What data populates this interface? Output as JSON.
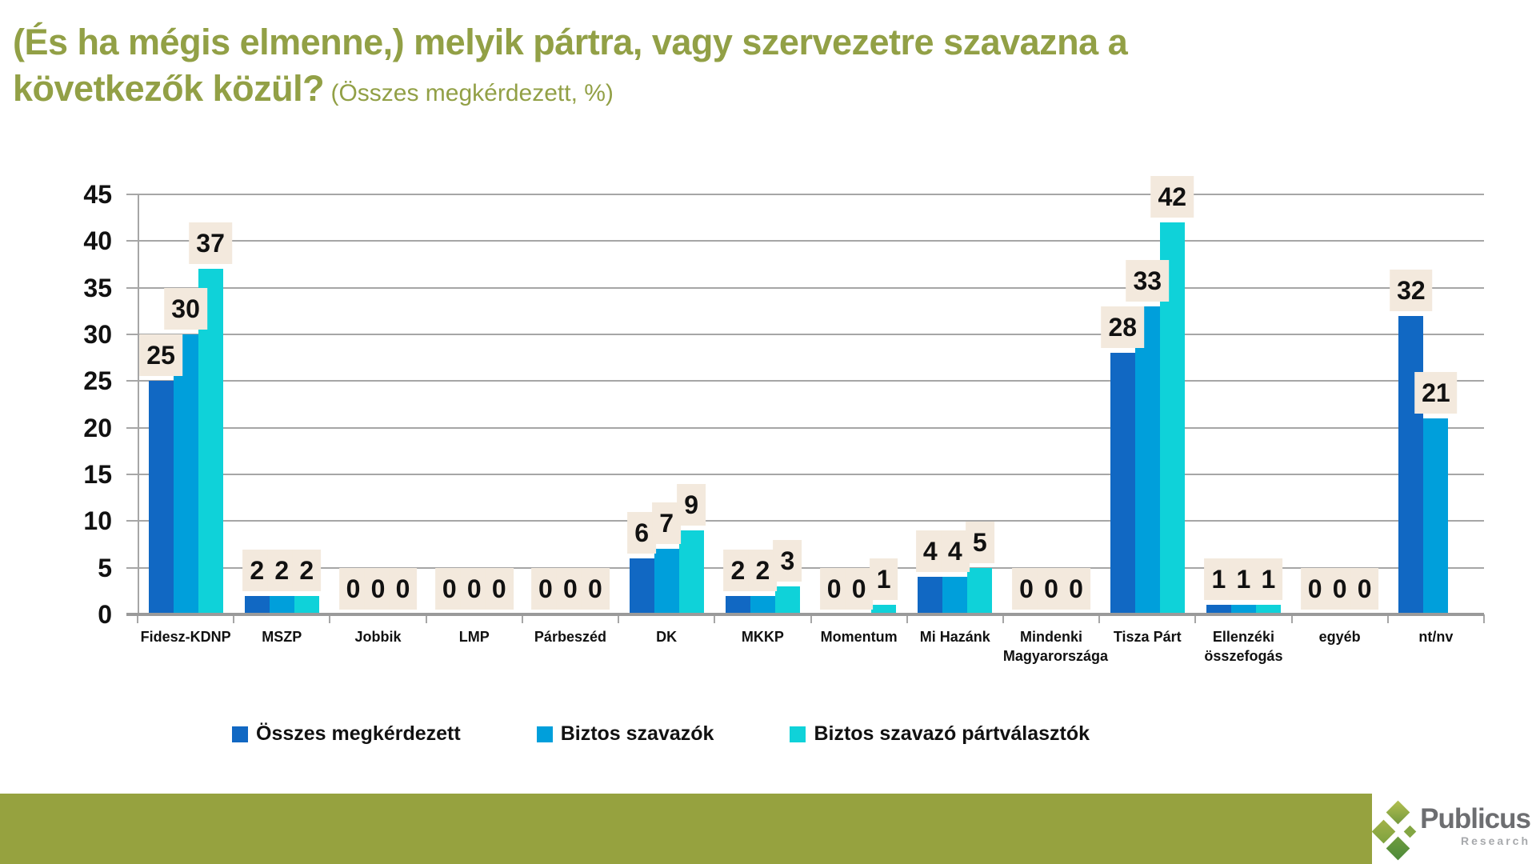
{
  "title": {
    "line1": "(És ha mégis elmenne,) melyik pártra, vagy szervezetre szavazna a",
    "line2_bold": "következők közül?",
    "line2_sub": " (Összes megkérdezett, %)"
  },
  "chart_data": {
    "type": "bar",
    "title": "(És ha mégis elmenne,) melyik pártra, vagy szervezetre szavazna a következők közül? (Összes megkérdezett, %)",
    "categories": [
      "Fidesz-KDNP",
      "MSZP",
      "Jobbik",
      "LMP",
      "Párbeszéd",
      "DK",
      "MKKP",
      "Momentum",
      "Mi Hazánk",
      "Mindenki Magyarországa",
      "Tisza Párt",
      "Ellenzéki összefogás",
      "egyéb",
      "nt/nv"
    ],
    "series": [
      {
        "name": "Összes megkérdezett",
        "color": "#1168c3",
        "values": [
          25,
          2,
          0,
          0,
          0,
          6,
          2,
          0,
          4,
          0,
          28,
          1,
          0,
          32
        ]
      },
      {
        "name": "Biztos szavazók",
        "color": "#009fdb",
        "values": [
          30,
          2,
          0,
          0,
          0,
          7,
          2,
          0,
          4,
          0,
          33,
          1,
          0,
          21
        ]
      },
      {
        "name": "Biztos szavazó pártválasztók",
        "color": "#0fd2d9",
        "values": [
          37,
          2,
          0,
          0,
          0,
          9,
          3,
          1,
          5,
          0,
          42,
          1,
          0,
          null
        ]
      }
    ],
    "ylim": [
      0,
      45
    ],
    "yticks": [
      0,
      5,
      10,
      15,
      20,
      25,
      30,
      35,
      40,
      45
    ],
    "grid": true,
    "legend_position": "bottom",
    "data_labels": true,
    "data_label_bg": "#f3e9dd"
  },
  "footer": {
    "brand": "Publicus",
    "brand_sub": "Research",
    "bar_color": "#96a23f"
  },
  "colors": {
    "title": "#92a046",
    "gridline": "#a6a6a6",
    "axis": "#9a9a9a",
    "text": "#111111"
  }
}
